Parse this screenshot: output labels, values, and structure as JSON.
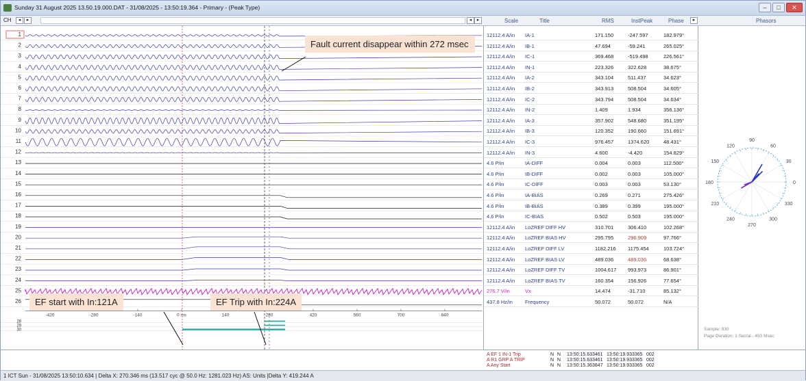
{
  "window": {
    "title": "Sunday 31 August 2025 13.50.19.000.DAT - 31/08/2025 - 13:50:19.364 - Primary - (Peak Type)",
    "ch_label": "CH"
  },
  "table_header": {
    "scale": "Scale",
    "title": "Title",
    "rms": "RMS",
    "instpeak": "InstPeak",
    "phase": "Phase"
  },
  "phasor_header": {
    "title": "Phasors"
  },
  "channels": [
    {
      "n": "1",
      "scale": "12112.4 A/in",
      "title": "IA-1",
      "rms": "171.150",
      "ip": "-247.597",
      "ph": "182.979°"
    },
    {
      "n": "2",
      "scale": "12112.4 A/in",
      "title": "IB-1",
      "rms": "47.694",
      "ip": "-59.241",
      "ph": "265.025°"
    },
    {
      "n": "3",
      "scale": "12112.4 A/in",
      "title": "IC-1",
      "rms": "369.468",
      "ip": "-519.498",
      "ph": "226.561°"
    },
    {
      "n": "4",
      "scale": "12112.4 A/in",
      "title": "IN-1",
      "rms": "223.326",
      "ip": "322.628",
      "ph": "38.675°"
    },
    {
      "n": "5",
      "scale": "12112.4 A/in",
      "title": "IA-2",
      "rms": "343.104",
      "ip": "511.437",
      "ph": "34.623°"
    },
    {
      "n": "6",
      "scale": "12112.4 A/in",
      "title": "IB-2",
      "rms": "343.913",
      "ip": "508.504",
      "ph": "34.605°"
    },
    {
      "n": "7",
      "scale": "12112.4 A/in",
      "title": "IC-2",
      "rms": "343.794",
      "ip": "508.504",
      "ph": "34.634°"
    },
    {
      "n": "8",
      "scale": "12112.4 A/in",
      "title": "IN-2",
      "rms": "1.409",
      "ip": "1.934",
      "ph": "356.136°"
    },
    {
      "n": "9",
      "scale": "12112.4 A/in",
      "title": "IA-3",
      "rms": "357.902",
      "ip": "548.680",
      "ph": "351.195°"
    },
    {
      "n": "10",
      "scale": "12112.4 A/in",
      "title": "IB-3",
      "rms": "120.352",
      "ip": "190.660",
      "ph": "151.691°"
    },
    {
      "n": "11",
      "scale": "12112.4 A/in",
      "title": "IC-3",
      "rms": "976.457",
      "ip": "1374.620",
      "ph": "48.431°"
    },
    {
      "n": "12",
      "scale": "12112.4 A/in",
      "title": "IN-3",
      "rms": "4.600",
      "ip": "-4.420",
      "ph": "154.829°"
    },
    {
      "n": "13",
      "scale": "4.6 P/in",
      "title": "IA-DIFF",
      "rms": "0.004",
      "ip": "0.003",
      "ph": "112.500°"
    },
    {
      "n": "14",
      "scale": "4.6 P/in",
      "title": "IB-DIFF",
      "rms": "0.002",
      "ip": "0.003",
      "ph": "105.000°"
    },
    {
      "n": "15",
      "scale": "4.6 P/in",
      "title": "IC-DIFF",
      "rms": "0.003",
      "ip": "0.003",
      "ph": "53.130°"
    },
    {
      "n": "16",
      "scale": "4.6 P/in",
      "title": "IA-BIAS",
      "rms": "0.269",
      "ip": "0.271",
      "ph": "275.426°"
    },
    {
      "n": "17",
      "scale": "4.6 P/in",
      "title": "IB-BIAS",
      "rms": "0.389",
      "ip": "0.399",
      "ph": "195.000°"
    },
    {
      "n": "18",
      "scale": "4.6 P/in",
      "title": "IC-BIAS",
      "rms": "0.502",
      "ip": "0.503",
      "ph": "195.000°"
    },
    {
      "n": "19",
      "scale": "12112.4 A/in",
      "title": "LoZREF DIFF HV",
      "rms": "310.701",
      "ip": "306.410",
      "ph": "102.268°"
    },
    {
      "n": "20",
      "scale": "12112.4 A/in",
      "title": "LoZREF BIAS HV",
      "rms": "295.795",
      "ip": "296.909",
      "ph": "97.766°"
    },
    {
      "n": "21",
      "scale": "12112.4 A/in",
      "title": "LoZREF DIFF LV",
      "rms": "1182.216",
      "ip": "1175.454",
      "ph": "103.724°"
    },
    {
      "n": "22",
      "scale": "12112.4 A/in",
      "title": "LoZREF BIAS LV",
      "rms": "489.036",
      "ip": "489.036",
      "ph": "68.638°"
    },
    {
      "n": "23",
      "scale": "12112.4 A/in",
      "title": "LoZREF DIFF TV",
      "rms": "1004.617",
      "ip": "993.973",
      "ph": "86.901°"
    },
    {
      "n": "24",
      "scale": "12112.4 A/in",
      "title": "LoZREF BIAS TV",
      "rms": "160.354",
      "ip": "156.926",
      "ph": "77.654°"
    },
    {
      "n": "25",
      "scale": "276.7 V/in",
      "title": "Vx",
      "rms": "14.474",
      "ip": "-31.710",
      "ph": "85.132°"
    },
    {
      "n": "26",
      "scale": "437.8 Hz/in",
      "title": "Frequency",
      "rms": "50.072",
      "ip": "50.072",
      "ph": "N/A"
    }
  ],
  "time_ticks": [
    "-420",
    "-280",
    "-140",
    "0 ms",
    "140",
    "280",
    "420",
    "560",
    "700",
    "840"
  ],
  "callouts": {
    "fault": "Fault current disappear within 272 msec",
    "ef_start": "EF start with In:121A",
    "ef_trip": "EF Trip with In:224A"
  },
  "digital_rows": [
    "28",
    "29",
    "30"
  ],
  "events": [
    {
      "name": "A EF 1 IN-1 Trip",
      "a": "N",
      "b": "N",
      "t1": "13:50:15.633461",
      "t2": "13:50:19.933365",
      "c": "002"
    },
    {
      "name": "A R1 GRP A TRIP",
      "a": "N",
      "b": "N",
      "t1": "13:50:15.633461",
      "t2": "13:50:19.933365",
      "c": "002"
    },
    {
      "name": "A Any Start",
      "a": "N",
      "b": "N",
      "t1": "13:50:15.363847",
      "t2": "13:50:19.933365",
      "c": "002"
    }
  ],
  "phasor": {
    "angles": [
      "90",
      "60",
      "30",
      "0",
      "330",
      "300",
      "270",
      "240",
      "210",
      "180",
      "150",
      "120"
    ],
    "sample": "Sample: 930",
    "duration": "Page Duration: 1 Sec/ai - 450 Msec"
  },
  "status": "1 ICT   Sun - 31/08/2025 13:50:10.634 | Delta X: 270.346 ms  (13.517 cyc @ 50.0 Hz: 1281.023 Hz) AS: Units  |Delta Y: 419.244 A",
  "colors": {
    "trace": "#3b3bb5",
    "ctrace": "#c81ec8",
    "dtrace": "#1a1a1a",
    "cursor": "#d94545",
    "digital": "#1fa69a"
  }
}
